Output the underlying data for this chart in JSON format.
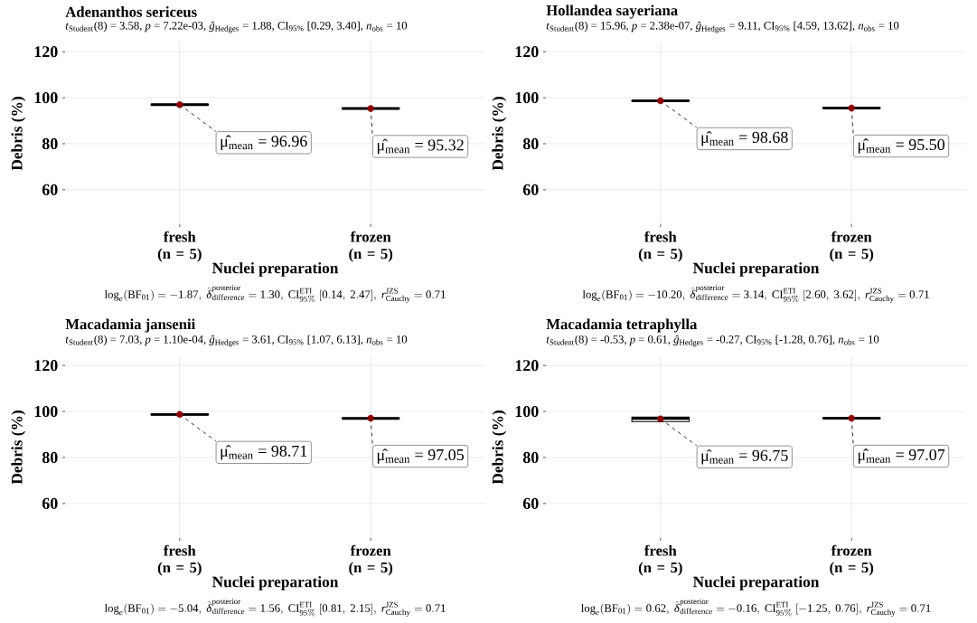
{
  "chart_data": [
    {
      "type": "box",
      "title": "Adenanthos sericeus",
      "subtitle": "*t*$_{Student}$(8) = 3.58, *p* = 7.22e-03, *ĝ*$_{Hedges}$ = 1.88, CI$_{95%}$ [0.29, 3.40], *n*$_{obs}$ = 10",
      "xlabel": "Nuclei preparation",
      "ylabel": "Debris (%)",
      "categories": [
        "fresh (n = 5)",
        "frozen (n = 5)"
      ],
      "ylim": [
        45,
        124
      ],
      "yticks": [
        60,
        80,
        100,
        120
      ],
      "grid": true,
      "series": [
        {
          "color": "#000000",
          "boxes": [
            {
              "low": 96.8,
              "q1": 96.8,
              "median": 97.0,
              "q3": 97.2,
              "high": 97.2,
              "mean": 96.96
            },
            {
              "low": 95.1,
              "q1": 95.1,
              "median": 95.3,
              "q3": 95.5,
              "high": 95.5,
              "mean": 95.32
            }
          ]
        }
      ],
      "annotations": [
        {
          "text": "μ̂$_{mean}$ = 96.96",
          "x": "fresh (n = 5)",
          "y": 96.96
        },
        {
          "text": "μ̂$_{mean}$ = 95.32",
          "x": "frozen (n = 5)",
          "y": 95.32
        },
        "\\log_{e}(\\mathrm{BF}_{01}) = -1.87,\\ \\hat{\\delta}^{\\mathrm{posterior}}_{\\mathrm{difference}} = 1.30,\\ \\mathrm{CI}^{\\mathrm{ETI}}_{95\\%}\\ [0.14,\\ 2.47],\\ r^{\\mathrm{JZS}}_{\\mathrm{Cauchy}} = 0.71"
      ]
    },
    {
      "type": "box",
      "title": "Hollandea sayeriana",
      "subtitle": "*t*$_{Student}$(8) = 15.96, *p* = 2.38e-07, *ĝ*$_{Hedges}$ = 9.11, CI$_{95%}$ [4.59, 13.62], *n*$_{obs}$ = 10",
      "xlabel": "Nuclei preparation",
      "ylabel": "Debris (%)",
      "categories": [
        "fresh (n = 5)",
        "frozen (n = 5)"
      ],
      "ylim": [
        45,
        124
      ],
      "yticks": [
        60,
        80,
        100,
        120
      ],
      "grid": true,
      "series": [
        {
          "color": "#000000",
          "boxes": [
            {
              "low": 98.5,
              "q1": 98.5,
              "median": 98.7,
              "q3": 98.9,
              "high": 98.9,
              "mean": 98.68
            },
            {
              "low": 95.3,
              "q1": 95.3,
              "median": 95.5,
              "q3": 95.7,
              "high": 95.7,
              "mean": 95.5
            }
          ]
        }
      ],
      "annotations": [
        {
          "text": "μ̂$_{mean}$ = 98.68",
          "x": "fresh (n = 5)",
          "y": 98.68
        },
        {
          "text": "μ̂$_{mean}$ = 95.50",
          "x": "frozen (n = 5)",
          "y": 95.5
        },
        "\\log_{e}(\\mathrm{BF}_{01}) = -10.20,\\ \\hat{\\delta}^{\\mathrm{posterior}}_{\\mathrm{difference}} = 3.14,\\ \\mathrm{CI}^{\\mathrm{ETI}}_{95\\%}\\ [2.60,\\ 3.62],\\ r^{\\mathrm{JZS}}_{\\mathrm{Cauchy}} = 0.71"
      ]
    },
    {
      "type": "box",
      "title": "Macadamia jansenii",
      "subtitle": "*t*$_{Student}$(8) = 7.03, *p* = 1.10e-04, *ĝ*$_{Hedges}$ = 3.61, CI$_{95%}$ [1.07, 6.13], *n*$_{obs}$ = 10",
      "xlabel": "Nuclei preparation",
      "ylabel": "Debris (%)",
      "categories": [
        "fresh (n = 5)",
        "frozen (n = 5)"
      ],
      "ylim": [
        45,
        124
      ],
      "yticks": [
        60,
        80,
        100,
        120
      ],
      "grid": true,
      "series": [
        {
          "color": "#000000",
          "boxes": [
            {
              "low": 98.5,
              "q1": 98.5,
              "median": 98.7,
              "q3": 98.9,
              "high": 98.9,
              "mean": 98.71
            },
            {
              "low": 96.9,
              "q1": 96.9,
              "median": 97.0,
              "q3": 97.2,
              "high": 97.2,
              "mean": 97.05
            }
          ]
        }
      ],
      "annotations": [
        {
          "text": "μ̂$_{mean}$ = 98.71",
          "x": "fresh (n = 5)",
          "y": 98.71
        },
        {
          "text": "μ̂$_{mean}$ = 97.05",
          "x": "frozen (n = 5)",
          "y": 97.05
        },
        "\\log_{e}(\\mathrm{BF}_{01}) = -5.04,\\ \\hat{\\delta}^{\\mathrm{posterior}}_{\\mathrm{difference}} = 1.56,\\ \\mathrm{CI}^{\\mathrm{ETI}}_{95\\%}\\ [0.81,\\ 2.15],\\ r^{\\mathrm{JZS}}_{\\mathrm{Cauchy}} = 0.71"
      ]
    },
    {
      "type": "box",
      "title": "Macadamia tetraphylla",
      "subtitle": "*t*$_{Student}$(8) = -0.53, *p* = 0.61, *ĝ*$_{Hedges}$ = -0.27, CI$_{95%}$ [-1.28, 0.76], *n*$_{obs}$ = 10",
      "xlabel": "Nuclei preparation",
      "ylabel": "Debris (%)",
      "categories": [
        "fresh (n = 5)",
        "frozen (n = 5)"
      ],
      "ylim": [
        45,
        124
      ],
      "yticks": [
        60,
        80,
        100,
        120
      ],
      "grid": true,
      "series": [
        {
          "color": "#000000",
          "boxes": [
            {
              "low": 95.6,
              "q1": 95.6,
              "median": 97.0,
              "q3": 97.6,
              "high": 97.6,
              "mean": 96.75
            },
            {
              "low": 96.9,
              "q1": 96.9,
              "median": 97.1,
              "q3": 97.3,
              "high": 97.3,
              "mean": 97.07
            }
          ]
        }
      ],
      "annotations": [
        {
          "text": "μ̂$_{mean}$ = 96.75",
          "x": "fresh (n = 5)",
          "y": 96.75
        },
        {
          "text": "μ̂$_{mean}$ = 97.07",
          "x": "frozen (n = 5)",
          "y": 97.07
        },
        "\\log_{e}(\\mathrm{BF}_{01}) = 0.62,\\ \\hat{\\delta}^{\\mathrm{posterior}}_{\\mathrm{difference}} = -0.16,\\ \\mathrm{CI}^{\\mathrm{ETI}}_{95\\%}\\ [-1.25,\\ 0.76],\\ r^{\\mathrm{JZS}}_{\\mathrm{Cauchy}} = 0.71"
      ]
    }
  ]
}
